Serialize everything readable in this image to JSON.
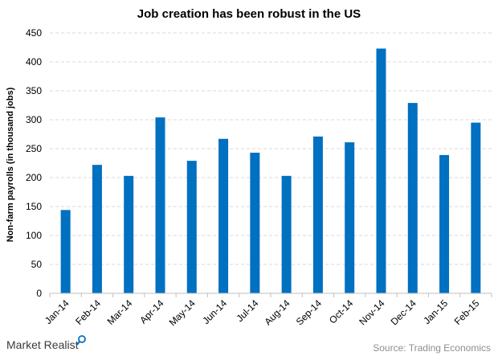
{
  "chart_data": {
    "type": "bar",
    "title": "Job creation has been robust in the US",
    "ylabel": "Non-farm payrolls (in thousand jobs)",
    "xlabel": "",
    "categories": [
      "Jan-14",
      "Feb-14",
      "Mar-14",
      "Apr-14",
      "May-14",
      "Jun-14",
      "Jul-14",
      "Aug-14",
      "Sep-14",
      "Oct-14",
      "Nov-14",
      "Dec-14",
      "Jan-15",
      "Feb-15"
    ],
    "values": [
      144,
      222,
      203,
      304,
      229,
      267,
      243,
      203,
      271,
      261,
      423,
      329,
      239,
      295
    ],
    "ylim": [
      0,
      450
    ],
    "yticks": [
      0,
      50,
      100,
      150,
      200,
      250,
      300,
      350,
      400,
      450
    ],
    "grid": true,
    "bar_color": "#0070c0",
    "grid_color": "#d9d9d9"
  },
  "footer": {
    "brand": "Market Realist",
    "source": "Source: Trading Economics"
  }
}
